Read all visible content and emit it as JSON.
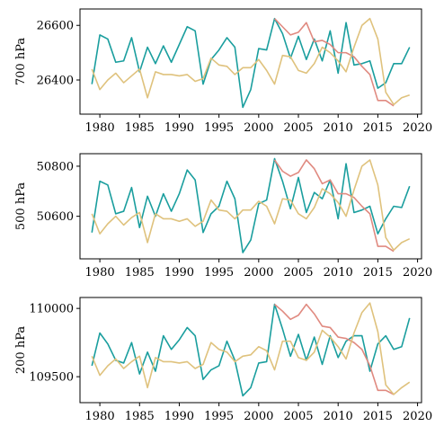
{
  "chart_data": [
    {
      "type": "line",
      "ylabel": "700 hPa",
      "xlim": [
        1977.5,
        2020.5
      ],
      "ylim": [
        26275,
        26660
      ],
      "xticks": [
        1980,
        1985,
        1990,
        1995,
        2000,
        2005,
        2010,
        2015,
        2020
      ],
      "yticks": [
        26400,
        26600
      ],
      "series": [
        {
          "color": "#1a9e9e",
          "x": [
            1979,
            1980,
            1981,
            1982,
            1983,
            1984,
            1985,
            1986,
            1987,
            1988,
            1989,
            1990,
            1991,
            1992,
            1993,
            1994,
            1995,
            1996,
            1997,
            1998,
            1999,
            2000,
            2001,
            2002,
            2003,
            2004,
            2005,
            2006,
            2007,
            2008,
            2009,
            2010,
            2011,
            2012,
            2013,
            2014,
            2015,
            2016,
            2017,
            2018,
            2019
          ],
          "y": [
            26385,
            26565,
            26550,
            26465,
            26470,
            26555,
            26430,
            26520,
            26460,
            26525,
            26465,
            26530,
            26595,
            26580,
            26385,
            26475,
            26510,
            26555,
            26520,
            26300,
            26365,
            26515,
            26510,
            26625,
            26570,
            26480,
            26560,
            26475,
            26550,
            26470,
            26580,
            26425,
            26610,
            26455,
            26460,
            26470,
            26370,
            26390,
            26460,
            26460,
            26520
          ]
        },
        {
          "color": "#e08a80",
          "x": [
            2002,
            2003,
            2004,
            2005,
            2006,
            2007,
            2008,
            2009,
            2010,
            2011,
            2012,
            2013,
            2014,
            2015,
            2016,
            2017
          ],
          "y": [
            26625,
            26595,
            26565,
            26575,
            26610,
            26540,
            26545,
            26530,
            26500,
            26500,
            26485,
            26450,
            26420,
            26325,
            26325,
            26305
          ]
        },
        {
          "color": "#dfc27d",
          "x": [
            1979,
            1980,
            1981,
            1982,
            1983,
            1984,
            1985,
            1986,
            1987,
            1988,
            1989,
            1990,
            1991,
            1992,
            1993,
            1994,
            1995,
            1996,
            1997,
            1998,
            1999,
            2000,
            2001,
            2002,
            2003,
            2004,
            2005,
            2006,
            2007,
            2008,
            2009,
            2010,
            2011,
            2012,
            2013,
            2014,
            2015,
            2016,
            2017,
            2018,
            2019
          ],
          "y": [
            26440,
            26365,
            26400,
            26425,
            26390,
            26415,
            26440,
            26335,
            26430,
            26420,
            26420,
            26415,
            26420,
            26395,
            26405,
            26480,
            26455,
            26450,
            26420,
            26445,
            26445,
            26475,
            26435,
            26385,
            26490,
            26485,
            26435,
            26425,
            26460,
            26520,
            26500,
            26470,
            26430,
            26520,
            26600,
            26625,
            26550,
            26355,
            26310,
            26335,
            26345
          ]
        }
      ]
    },
    {
      "type": "line",
      "ylabel": "500 hPa",
      "xlim": [
        1977.5,
        2020.5
      ],
      "ylim": [
        50430,
        50850
      ],
      "xticks": [
        1980,
        1985,
        1990,
        1995,
        2000,
        2005,
        2010,
        2015,
        2020
      ],
      "yticks": [
        50600,
        50800
      ],
      "series": [
        {
          "color": "#1a9e9e",
          "x": [
            1979,
            1980,
            1981,
            1982,
            1983,
            1984,
            1985,
            1986,
            1987,
            1988,
            1989,
            1990,
            1991,
            1992,
            1993,
            1994,
            1995,
            1996,
            1997,
            1998,
            1999,
            2000,
            2001,
            2002,
            2003,
            2004,
            2005,
            2006,
            2007,
            2008,
            2009,
            2010,
            2011,
            2012,
            2013,
            2014,
            2015,
            2016,
            2017,
            2018,
            2019
          ],
          "y": [
            50535,
            50740,
            50725,
            50610,
            50620,
            50715,
            50555,
            50680,
            50600,
            50690,
            50620,
            50690,
            50785,
            50745,
            50535,
            50610,
            50640,
            50740,
            50670,
            50455,
            50505,
            50650,
            50665,
            50830,
            50740,
            50630,
            50755,
            50615,
            50695,
            50670,
            50745,
            50590,
            50810,
            50615,
            50625,
            50640,
            50530,
            50590,
            50640,
            50635,
            50720
          ]
        },
        {
          "color": "#e08a80",
          "x": [
            2002,
            2003,
            2004,
            2005,
            2006,
            2007,
            2008,
            2009,
            2010,
            2011,
            2012,
            2013,
            2014,
            2015,
            2016,
            2017
          ],
          "y": [
            50825,
            50780,
            50760,
            50775,
            50825,
            50790,
            50730,
            50745,
            50690,
            50690,
            50675,
            50640,
            50610,
            50480,
            50480,
            50460
          ]
        },
        {
          "color": "#dfc27d",
          "x": [
            1979,
            1980,
            1981,
            1982,
            1983,
            1984,
            1985,
            1986,
            1987,
            1988,
            1989,
            1990,
            1991,
            1992,
            1993,
            1994,
            1995,
            1996,
            1997,
            1998,
            1999,
            2000,
            2001,
            2002,
            2003,
            2004,
            2005,
            2006,
            2007,
            2008,
            2009,
            2010,
            2011,
            2012,
            2013,
            2014,
            2015,
            2016,
            2017,
            2018,
            2019
          ],
          "y": [
            50610,
            50530,
            50570,
            50600,
            50565,
            50595,
            50615,
            50495,
            50610,
            50590,
            50590,
            50580,
            50590,
            50560,
            50580,
            50665,
            50625,
            50620,
            50590,
            50625,
            50625,
            50660,
            50640,
            50570,
            50670,
            50665,
            50610,
            50590,
            50635,
            50710,
            50690,
            50655,
            50600,
            50705,
            50800,
            50825,
            50725,
            50515,
            50465,
            50495,
            50510
          ]
        }
      ]
    },
    {
      "type": "line",
      "ylabel": "200 hPa",
      "xlim": [
        1977.5,
        2020.5
      ],
      "ylim": [
        109310,
        110080
      ],
      "xticks": [
        1980,
        1985,
        1990,
        1995,
        2000,
        2005,
        2010,
        2015,
        2020
      ],
      "yticks": [
        109500,
        110000
      ],
      "series": [
        {
          "color": "#1a9e9e",
          "x": [
            1979,
            1980,
            1981,
            1982,
            1983,
            1984,
            1985,
            1986,
            1987,
            1988,
            1989,
            1990,
            1991,
            1992,
            1993,
            1994,
            1995,
            1996,
            1997,
            1998,
            1999,
            2000,
            2001,
            2002,
            2003,
            2004,
            2005,
            2006,
            2007,
            2008,
            2009,
            2010,
            2011,
            2012,
            2013,
            2014,
            2015,
            2016,
            2017,
            2018,
            2019
          ],
          "y": [
            109580,
            109820,
            109740,
            109620,
            109600,
            109750,
            109520,
            109680,
            109540,
            109800,
            109700,
            109770,
            109860,
            109800,
            109480,
            109550,
            109580,
            109760,
            109620,
            109360,
            109420,
            109600,
            109610,
            110030,
            109850,
            109650,
            109810,
            109620,
            109790,
            109590,
            109800,
            109640,
            109760,
            109800,
            109800,
            109540,
            109740,
            109800,
            109700,
            109720,
            109930
          ]
        },
        {
          "color": "#e08a80",
          "x": [
            2002,
            2003,
            2004,
            2005,
            2006,
            2007,
            2008,
            2009,
            2010,
            2011,
            2012,
            2013,
            2014,
            2015,
            2016,
            2017
          ],
          "y": [
            110030,
            109980,
            109920,
            109950,
            110030,
            109960,
            109870,
            109860,
            109790,
            109780,
            109750,
            109700,
            109580,
            109400,
            109400,
            109370
          ]
        },
        {
          "color": "#dfc27d",
          "x": [
            1979,
            1980,
            1981,
            1982,
            1983,
            1984,
            1985,
            1986,
            1987,
            1988,
            1989,
            1990,
            1991,
            1992,
            1993,
            1994,
            1995,
            1996,
            1997,
            1998,
            1999,
            2000,
            2001,
            2002,
            2003,
            2004,
            2005,
            2006,
            2007,
            2008,
            2009,
            2010,
            2011,
            2012,
            2013,
            2014,
            2015,
            2016,
            2017,
            2018,
            2019
          ],
          "y": [
            109650,
            109510,
            109580,
            109630,
            109560,
            109610,
            109650,
            109420,
            109640,
            109610,
            109610,
            109600,
            109610,
            109560,
            109590,
            109750,
            109700,
            109680,
            109610,
            109650,
            109660,
            109720,
            109690,
            109550,
            109760,
            109760,
            109640,
            109620,
            109680,
            109840,
            109790,
            109720,
            109630,
            109820,
            109970,
            110040,
            109830,
            109440,
            109370,
            109420,
            109460
          ]
        }
      ]
    }
  ]
}
